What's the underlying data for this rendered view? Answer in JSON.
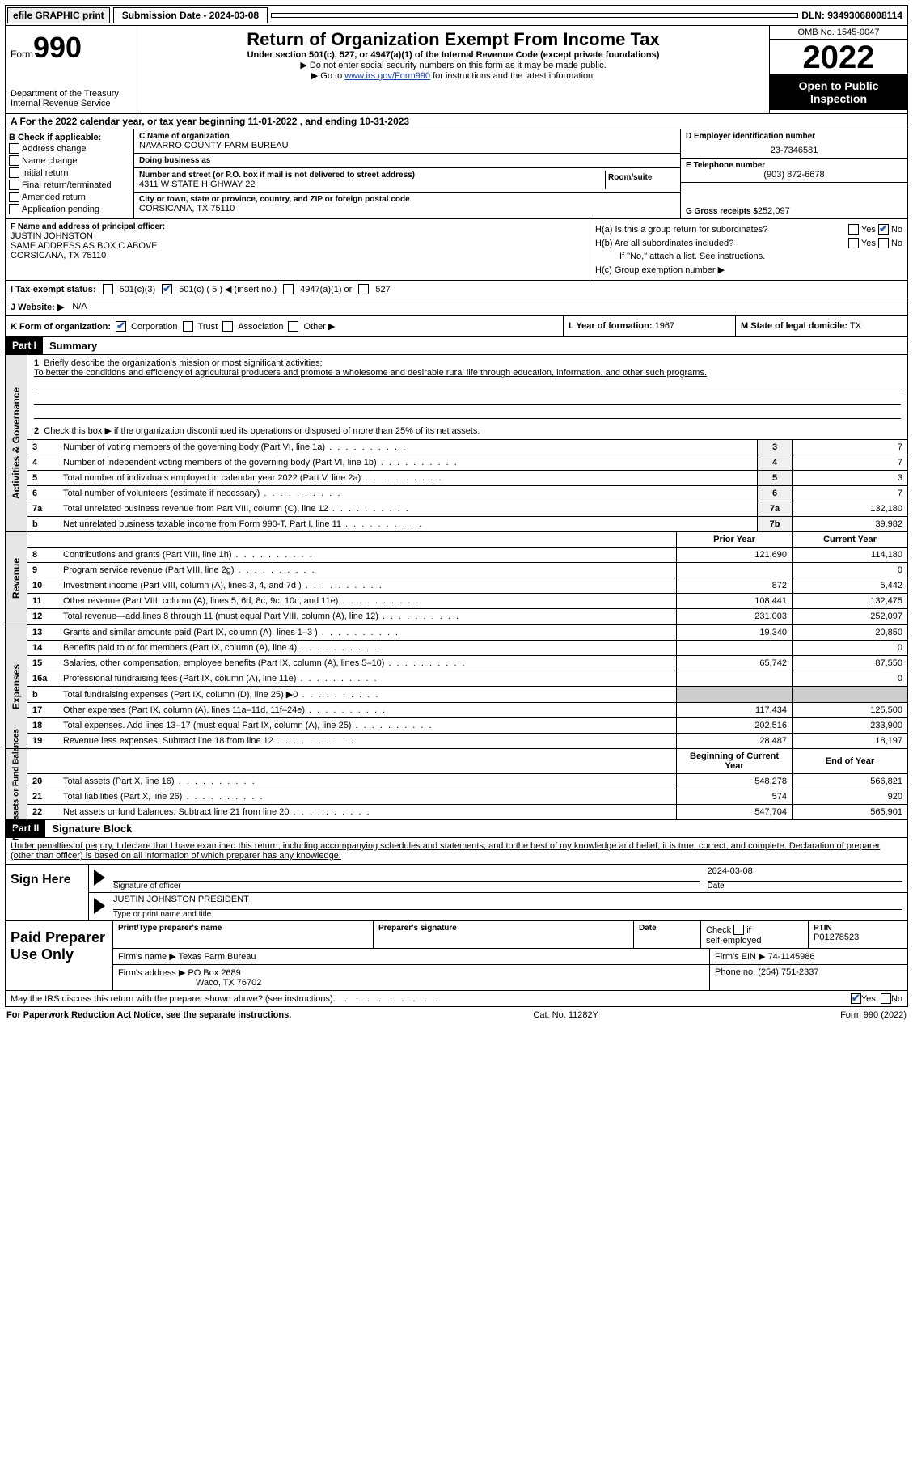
{
  "topbar": {
    "efile": "efile GRAPHIC print",
    "subm_label": "Submission Date - 2024-03-08",
    "blank": " ",
    "dln": "DLN: 93493068008114"
  },
  "header": {
    "form_word": "Form",
    "form_num": "990",
    "dept": "Department of the Treasury",
    "irs": "Internal Revenue Service",
    "title": "Return of Organization Exempt From Income Tax",
    "sub": "Under section 501(c), 527, or 4947(a)(1) of the Internal Revenue Code (except private foundations)",
    "nossn": "Do not enter social security numbers on this form as it may be made public.",
    "goto_pre": "Go to ",
    "goto_link": "www.irs.gov/Form990",
    "goto_post": " for instructions and the latest information.",
    "omb": "OMB No. 1545-0047",
    "year": "2022",
    "open": "Open to Public Inspection"
  },
  "period": "A For the 2022 calendar year, or tax year beginning 11-01-2022    , and ending 10-31-2023",
  "B": {
    "label": "B Check if applicable:",
    "addr": "Address change",
    "name": "Name change",
    "init": "Initial return",
    "final": "Final return/terminated",
    "amend": "Amended return",
    "app": "Application pending"
  },
  "C": {
    "nameLbl": "C Name of organization",
    "name": "NAVARRO COUNTY FARM BUREAU",
    "dbaLbl": "Doing business as",
    "dba": "",
    "streetLbl": "Number and street (or P.O. box if mail is not delivered to street address)",
    "roomLbl": "Room/suite",
    "street": "4311 W STATE HIGHWAY 22",
    "cityLbl": "City or town, state or province, country, and ZIP or foreign postal code",
    "city": "CORSICANA, TX  75110"
  },
  "D": {
    "einLbl": "D Employer identification number",
    "ein": "23-7346581",
    "telLbl": "E Telephone number",
    "tel": "(903) 872-6678",
    "grossLbl": "G Gross receipts $",
    "gross": "252,097"
  },
  "F": {
    "label": "F  Name and address of principal officer:",
    "name": "JUSTIN JOHNSTON",
    "addr1": "SAME ADDRESS AS BOX C ABOVE",
    "addr2": "CORSICANA, TX  75110"
  },
  "H": {
    "a": "H(a)  Is this a group return for subordinates?",
    "b": "H(b)  Are all subordinates included?",
    "bnote": "If \"No,\" attach a list. See instructions.",
    "c": "H(c)  Group exemption number ▶",
    "yes": "Yes",
    "no": "No"
  },
  "I": {
    "label": "I    Tax-exempt status:",
    "c3": "501(c)(3)",
    "c": "501(c) ( 5 ) ◀ (insert no.)",
    "a4947": "4947(a)(1) or",
    "s527": "527"
  },
  "J": {
    "label": "J   Website: ▶",
    "val": "N/A"
  },
  "K": {
    "label": "K Form of organization:",
    "corp": "Corporation",
    "trust": "Trust",
    "assoc": "Association",
    "other": "Other ▶"
  },
  "L": {
    "label": "L Year of formation:",
    "val": "1967"
  },
  "M": {
    "label": "M State of legal domicile:",
    "val": "TX"
  },
  "PartI": {
    "bar": "Part I",
    "title": "Summary",
    "q1": "Briefly describe the organization's mission or most significant activities:",
    "mission": "To better the conditions and efficiency of agricultural producers and promote a wholesome and desirable rural life through education, information, and other such programs.",
    "q2": "Check this box ▶       if the organization discontinued its operations or disposed of more than 25% of its net assets.",
    "side_ag": "Activities & Governance",
    "side_rev": "Revenue",
    "side_exp": "Expenses",
    "side_na": "Net Assets or Fund Balances",
    "rows_ag": [
      {
        "n": "3",
        "t": "Number of voting members of the governing body (Part VI, line 1a)",
        "box": "3",
        "v": "7"
      },
      {
        "n": "4",
        "t": "Number of independent voting members of the governing body (Part VI, line 1b)",
        "box": "4",
        "v": "7"
      },
      {
        "n": "5",
        "t": "Total number of individuals employed in calendar year 2022 (Part V, line 2a)",
        "box": "5",
        "v": "3"
      },
      {
        "n": "6",
        "t": "Total number of volunteers (estimate if necessary)",
        "box": "6",
        "v": "7"
      },
      {
        "n": "7a",
        "t": "Total unrelated business revenue from Part VIII, column (C), line 12",
        "box": "7a",
        "v": "132,180"
      },
      {
        "n": "b",
        "t": "Net unrelated business taxable income from Form 990-T, Part I, line 11",
        "box": "7b",
        "v": "39,982"
      }
    ],
    "hdr_prior": "Prior Year",
    "hdr_curr": "Current Year",
    "rows_rev": [
      {
        "n": "8",
        "t": "Contributions and grants (Part VIII, line 1h)",
        "p": "121,690",
        "c": "114,180"
      },
      {
        "n": "9",
        "t": "Program service revenue (Part VIII, line 2g)",
        "p": "",
        "c": "0"
      },
      {
        "n": "10",
        "t": "Investment income (Part VIII, column (A), lines 3, 4, and 7d )",
        "p": "872",
        "c": "5,442"
      },
      {
        "n": "11",
        "t": "Other revenue (Part VIII, column (A), lines 5, 6d, 8c, 9c, 10c, and 11e)",
        "p": "108,441",
        "c": "132,475"
      },
      {
        "n": "12",
        "t": "Total revenue—add lines 8 through 11 (must equal Part VIII, column (A), line 12)",
        "p": "231,003",
        "c": "252,097"
      }
    ],
    "rows_exp": [
      {
        "n": "13",
        "t": "Grants and similar amounts paid (Part IX, column (A), lines 1–3 )",
        "p": "19,340",
        "c": "20,850"
      },
      {
        "n": "14",
        "t": "Benefits paid to or for members (Part IX, column (A), line 4)",
        "p": "",
        "c": "0"
      },
      {
        "n": "15",
        "t": "Salaries, other compensation, employee benefits (Part IX, column (A), lines 5–10)",
        "p": "65,742",
        "c": "87,550"
      },
      {
        "n": "16a",
        "t": "Professional fundraising fees (Part IX, column (A), line 11e)",
        "p": "",
        "c": "0"
      },
      {
        "n": "b",
        "t": "Total fundraising expenses (Part IX, column (D), line 25) ▶0",
        "p": "SHADE",
        "c": "SHADE"
      },
      {
        "n": "17",
        "t": "Other expenses (Part IX, column (A), lines 11a–11d, 11f–24e)",
        "p": "117,434",
        "c": "125,500"
      },
      {
        "n": "18",
        "t": "Total expenses. Add lines 13–17 (must equal Part IX, column (A), line 25)",
        "p": "202,516",
        "c": "233,900"
      },
      {
        "n": "19",
        "t": "Revenue less expenses. Subtract line 18 from line 12",
        "p": "28,487",
        "c": "18,197"
      }
    ],
    "hdr_boy": "Beginning of Current Year",
    "hdr_eoy": "End of Year",
    "rows_na": [
      {
        "n": "20",
        "t": "Total assets (Part X, line 16)",
        "p": "548,278",
        "c": "566,821"
      },
      {
        "n": "21",
        "t": "Total liabilities (Part X, line 26)",
        "p": "574",
        "c": "920"
      },
      {
        "n": "22",
        "t": "Net assets or fund balances. Subtract line 21 from line 20",
        "p": "547,704",
        "c": "565,901"
      }
    ]
  },
  "PartII": {
    "bar": "Part II",
    "title": "Signature Block",
    "decl": "Under penalties of perjury, I declare that I have examined this return, including accompanying schedules and statements, and to the best of my knowledge and belief, it is true, correct, and complete. Declaration of preparer (other than officer) is based on all information of which preparer has any knowledge.",
    "sign_here": "Sign Here",
    "sig_of": "Signature of officer",
    "date": "Date",
    "sigdate": "2024-03-08",
    "printed": "JUSTIN JOHNSTON  PRESIDENT",
    "printed_cap": "Type or print name and title",
    "paid": "Paid Preparer Use Only",
    "pt_name_lbl": "Print/Type preparer's name",
    "pt_sig_lbl": "Preparer's signature",
    "pt_date_lbl": "Date",
    "pt_check": "Check         if self-employed",
    "ptin_lbl": "PTIN",
    "ptin": "P01278523",
    "firm_name_lbl": "Firm's name    ▶",
    "firm_name": "Texas Farm Bureau",
    "firm_ein_lbl": "Firm's EIN ▶",
    "firm_ein": "74-1145986",
    "firm_addr_lbl": "Firm's address ▶",
    "firm_addr1": "PO Box 2689",
    "firm_addr2": "Waco, TX  76702",
    "phone_lbl": "Phone no.",
    "phone": "(254) 751-2337",
    "may": "May the IRS discuss this return with the preparer shown above? (see instructions)",
    "yes": "Yes",
    "no": "No"
  },
  "footer": {
    "left": "For Paperwork Reduction Act Notice, see the separate instructions.",
    "mid": "Cat. No. 11282Y",
    "right": "Form 990 (2022)"
  }
}
